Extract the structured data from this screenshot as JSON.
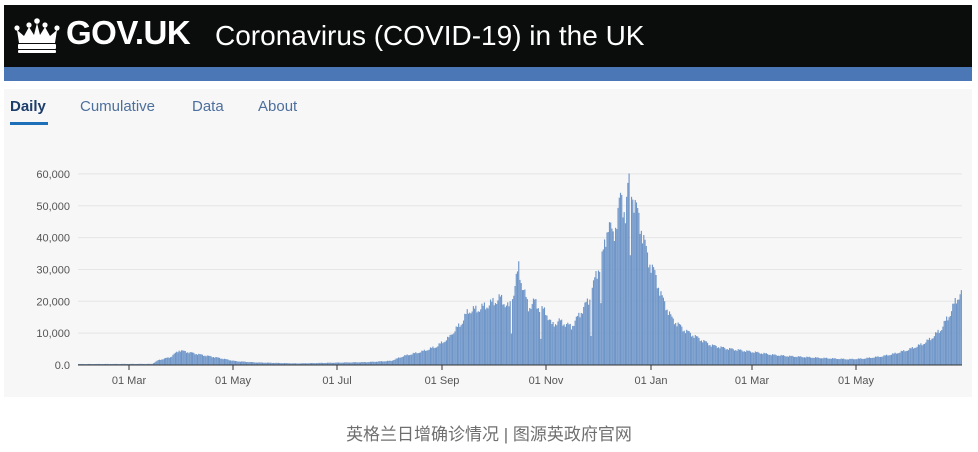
{
  "header": {
    "logo_text": "GOV.UK",
    "service_name": "Coronavirus (COVID-19) in the UK",
    "colors": {
      "header_bg": "#0b0c0c",
      "band": "#4c77b6"
    }
  },
  "tabs": [
    {
      "label": "Daily",
      "active": true
    },
    {
      "label": "Cumulative",
      "active": false
    },
    {
      "label": "Data",
      "active": false
    },
    {
      "label": "About",
      "active": false
    }
  ],
  "caption": "英格兰日增确诊情况 | 图源英政府官网",
  "chart_data": {
    "type": "bar",
    "x_ticks": [
      "01 Mar",
      "01 May",
      "01 Jul",
      "01 Sep",
      "01 Nov",
      "01 Jan",
      "01 Mar",
      "01 May"
    ],
    "y_ticks": [
      "0.0",
      "10,000",
      "20,000",
      "30,000",
      "40,000",
      "50,000",
      "60,000"
    ],
    "ylim": [
      0,
      65000
    ],
    "grid": true,
    "bar_color": "#6e95c8",
    "series_keypoints": [
      [
        0,
        300
      ],
      [
        60,
        350
      ],
      [
        65,
        1500
      ],
      [
        75,
        2500
      ],
      [
        82,
        4600
      ],
      [
        90,
        4000
      ],
      [
        100,
        3200
      ],
      [
        112,
        2400
      ],
      [
        128,
        1200
      ],
      [
        145,
        800
      ],
      [
        178,
        500
      ],
      [
        205,
        700
      ],
      [
        235,
        900
      ],
      [
        255,
        1300
      ],
      [
        265,
        2800
      ],
      [
        280,
        4200
      ],
      [
        292,
        5800
      ],
      [
        303,
        8800
      ],
      [
        304,
        16000
      ],
      [
        305,
        10000
      ],
      [
        312,
        13000
      ],
      [
        318,
        17000
      ],
      [
        326,
        17500
      ],
      [
        335,
        19000
      ],
      [
        344,
        21000
      ],
      [
        351,
        18000
      ],
      [
        353,
        19500
      ],
      [
        359,
        30500
      ],
      [
        361,
        26500
      ],
      [
        367,
        18000
      ],
      [
        372,
        20000
      ],
      [
        376,
        17800
      ],
      [
        381,
        16800
      ],
      [
        386,
        12500
      ],
      [
        392,
        13800
      ],
      [
        402,
        12000
      ],
      [
        408,
        15500
      ],
      [
        417,
        21000
      ],
      [
        422,
        28000
      ],
      [
        428,
        35000
      ],
      [
        432,
        45000
      ],
      [
        436,
        40000
      ],
      [
        442,
        52000
      ],
      [
        446,
        48000
      ],
      [
        450,
        61000
      ],
      [
        452,
        53000
      ],
      [
        459,
        43000
      ],
      [
        464,
        34000
      ],
      [
        470,
        28500
      ],
      [
        476,
        21000
      ],
      [
        484,
        14500
      ],
      [
        494,
        11000
      ],
      [
        505,
        8500
      ],
      [
        516,
        6200
      ],
      [
        528,
        5200
      ],
      [
        540,
        4600
      ],
      [
        552,
        4000
      ],
      [
        566,
        3200
      ],
      [
        578,
        2800
      ],
      [
        592,
        2500
      ],
      [
        606,
        2200
      ],
      [
        617,
        2000
      ],
      [
        628,
        1800
      ],
      [
        640,
        2000
      ],
      [
        655,
        2700
      ],
      [
        665,
        3500
      ],
      [
        677,
        4800
      ],
      [
        688,
        6500
      ],
      [
        695,
        8200
      ],
      [
        703,
        11000
      ],
      [
        710,
        15500
      ],
      [
        716,
        20500
      ],
      [
        719,
        22500
      ],
      [
        720,
        22000
      ]
    ],
    "dips": [
      [
        304,
        10000
      ],
      [
        353,
        10500
      ],
      [
        377,
        8200
      ],
      [
        418,
        9800
      ],
      [
        426,
        19000
      ],
      [
        450,
        33000
      ]
    ]
  }
}
